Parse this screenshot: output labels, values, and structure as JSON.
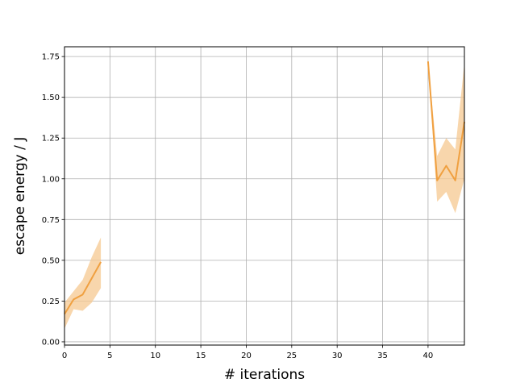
{
  "chart_data": {
    "type": "line",
    "title": "",
    "xlabel": "# iterations",
    "ylabel": "escape energy / J",
    "xlim": [
      0,
      44
    ],
    "ylim": [
      -0.02,
      1.81
    ],
    "xticks": [
      0,
      5,
      10,
      15,
      20,
      25,
      30,
      35,
      40
    ],
    "yticks": [
      0.0,
      0.25,
      0.5,
      0.75,
      1.0,
      1.25,
      1.5,
      1.75
    ],
    "xtick_labels": [
      "0",
      "5",
      "10",
      "15",
      "20",
      "25",
      "30",
      "35",
      "40"
    ],
    "ytick_labels": [
      "0.00",
      "0.25",
      "0.50",
      "0.75",
      "1.00",
      "1.25",
      "1.50",
      "1.75"
    ],
    "grid": true,
    "legend": "none",
    "line_color": "#f0a040",
    "band_color": "#f5c890",
    "segments": [
      {
        "x": [
          0,
          1,
          2,
          3,
          4
        ],
        "y": [
          0.17,
          0.26,
          0.29,
          0.39,
          0.49
        ],
        "lower": [
          0.08,
          0.2,
          0.19,
          0.24,
          0.33
        ],
        "upper": [
          0.24,
          0.31,
          0.38,
          0.52,
          0.64
        ]
      },
      {
        "x": [
          40,
          41,
          42,
          43,
          44
        ],
        "y": [
          1.72,
          0.99,
          1.08,
          0.99,
          1.35
        ],
        "lower": [
          1.72,
          0.86,
          0.92,
          0.79,
          1.0
        ],
        "upper": [
          1.72,
          1.14,
          1.25,
          1.18,
          1.71
        ]
      }
    ]
  }
}
